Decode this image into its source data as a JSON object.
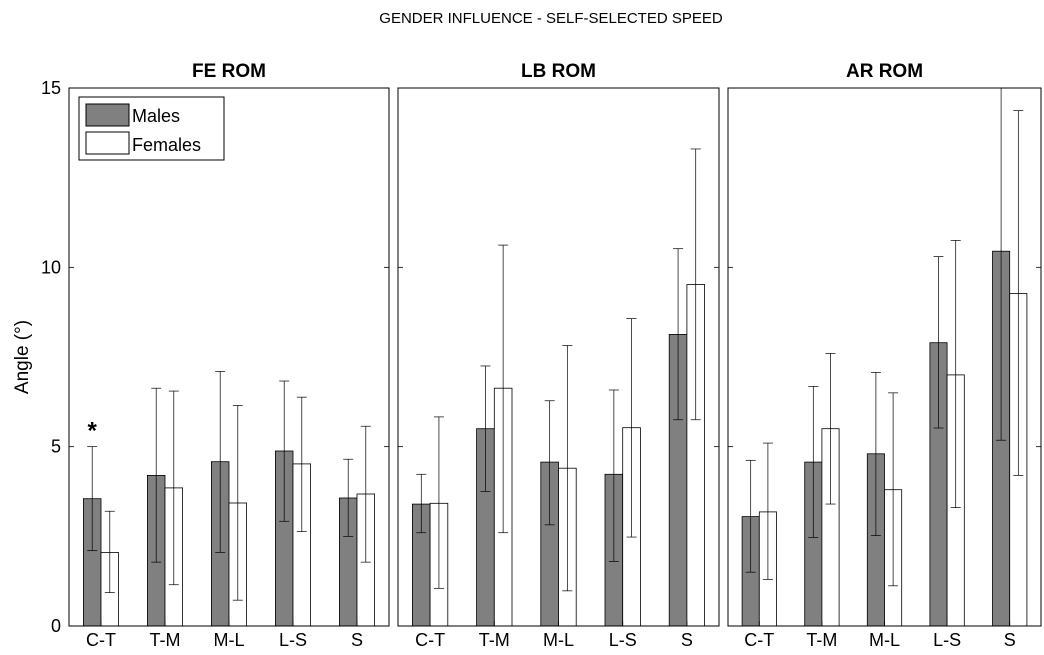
{
  "figure": {
    "title": "GENDER INFLUENCE - SELF-SELECTED SPEED",
    "ylabel": "Angle (°)"
  },
  "legend": {
    "placement": "top-left of first panel",
    "items": [
      {
        "label": "Males",
        "color": "#808080"
      },
      {
        "label": "Females",
        "color": "#ffffff"
      }
    ]
  },
  "chart_data": [
    {
      "type": "bar",
      "title": "FE ROM",
      "categories": [
        "C-T",
        "T-M",
        "M-L",
        "L-S",
        "S"
      ],
      "ylabel": "Angle (°)",
      "ylim": [
        0,
        15
      ],
      "yticks": [
        0,
        5,
        10,
        15
      ],
      "series": [
        {
          "name": "Males",
          "color": "#808080",
          "values": [
            3.55,
            4.2,
            4.58,
            4.88,
            3.57
          ],
          "err_low": [
            2.1,
            1.78,
            2.05,
            2.92,
            2.5
          ],
          "err_high": [
            5.0,
            6.63,
            7.1,
            6.83,
            4.65
          ]
        },
        {
          "name": "Females",
          "color": "#ffffff",
          "values": [
            2.05,
            3.85,
            3.43,
            4.52,
            3.68
          ],
          "err_low": [
            0.93,
            1.15,
            0.72,
            2.63,
            1.78
          ],
          "err_high": [
            3.2,
            6.55,
            6.15,
            6.38,
            5.57
          ]
        }
      ],
      "annotations": [
        {
          "text": "*",
          "category": "C-T",
          "y": 5.5
        }
      ]
    },
    {
      "type": "bar",
      "title": "LB ROM",
      "categories": [
        "C-T",
        "T-M",
        "M-L",
        "L-S",
        "S"
      ],
      "ylim": [
        0,
        15
      ],
      "series": [
        {
          "name": "Males",
          "color": "#808080",
          "values": [
            3.4,
            5.5,
            4.57,
            4.23,
            8.13
          ],
          "err_low": [
            2.6,
            3.75,
            2.82,
            1.8,
            5.75
          ],
          "err_high": [
            4.23,
            7.25,
            6.28,
            6.58,
            10.52
          ]
        },
        {
          "name": "Females",
          "color": "#ffffff",
          "values": [
            3.42,
            6.63,
            4.4,
            5.53,
            9.52
          ],
          "err_low": [
            1.05,
            2.6,
            0.98,
            2.48,
            5.75
          ],
          "err_high": [
            5.83,
            10.62,
            7.82,
            8.57,
            13.3
          ]
        }
      ],
      "annotations": []
    },
    {
      "type": "bar",
      "title": "AR ROM",
      "categories": [
        "C-T",
        "T-M",
        "M-L",
        "L-S",
        "S"
      ],
      "ylim": [
        0,
        15
      ],
      "series": [
        {
          "name": "Males",
          "color": "#808080",
          "values": [
            3.05,
            4.57,
            4.8,
            7.9,
            10.45
          ],
          "err_low": [
            1.5,
            2.47,
            2.52,
            5.52,
            5.18
          ],
          "err_high": [
            4.62,
            6.68,
            7.07,
            10.3,
            15.0
          ]
        },
        {
          "name": "Females",
          "color": "#ffffff",
          "values": [
            3.18,
            5.5,
            3.8,
            7.0,
            9.27
          ],
          "err_low": [
            1.3,
            3.4,
            1.12,
            3.3,
            4.2
          ],
          "err_high": [
            5.1,
            7.6,
            6.5,
            10.75,
            14.37
          ]
        }
      ],
      "annotations": []
    }
  ]
}
